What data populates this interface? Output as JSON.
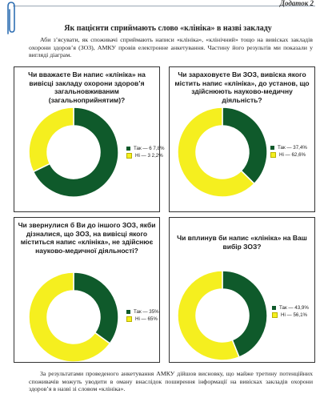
{
  "appendix": "Додаток 2",
  "title": "Як пацієнти сприймають слово «клініка» в назві закладу",
  "intro": "Аби з’ясувати, як споживачі сприймають написи «клініка», «клінічний» тощо на вивісках закладів охорони здоров’я (ЗОЗ), АМКУ провів електронне анкетування. Частину його результів ми показали у вигляді діаграм.",
  "outro": "За результатами проведеного анкетування АМКУ дійшов висновку, що майже третину потенційних споживачів можуть уводити в оману внаслідок поширення інформації на вивісках закладів охорони здоров’я в назві зі словом «клініка».",
  "colors": {
    "yes": "#0f5a2b",
    "no": "#f5ef1f"
  },
  "chart_data": [
    {
      "type": "pie",
      "title": "Чи вважаєте Ви напис «клініка» на вивісці закладу охорони здоров’я загальновживаним (загальноприйнятим)?",
      "labels": [
        "Так",
        "Ні"
      ],
      "values": [
        67.8,
        32.2
      ],
      "legend_text": [
        "Так — 6 7,8%",
        "Ні — 3 2,2%"
      ]
    },
    {
      "type": "pie",
      "title": "Чи зараховуєте Ви ЗОЗ, вивіска якого містить напис «клініка», до установ, що здійснюють науково-медичну діяльність?",
      "labels": [
        "Так",
        "Ні"
      ],
      "values": [
        37.4,
        62.6
      ],
      "legend_text": [
        "Так — 37,4%",
        "Ні — 62,6%"
      ]
    },
    {
      "type": "pie",
      "title": "Чи звернулися б Ви до іншого ЗОЗ, якби дізналися, що ЗОЗ, на вивісці якого міститься напис «клініка», не здійснює науково-медичної діяльності?",
      "labels": [
        "Так",
        "Ні"
      ],
      "values": [
        35,
        65
      ],
      "legend_text": [
        "Так — 35%",
        "Ні — 65%"
      ]
    },
    {
      "type": "pie",
      "title": "Чи вплинув би напис «клініка» на Ваш вибір ЗОЗ?",
      "labels": [
        "Так",
        "Ні"
      ],
      "values": [
        43.9,
        56.1
      ],
      "legend_text": [
        "Так — 43,9%",
        "Ні — 56,1%"
      ]
    }
  ]
}
